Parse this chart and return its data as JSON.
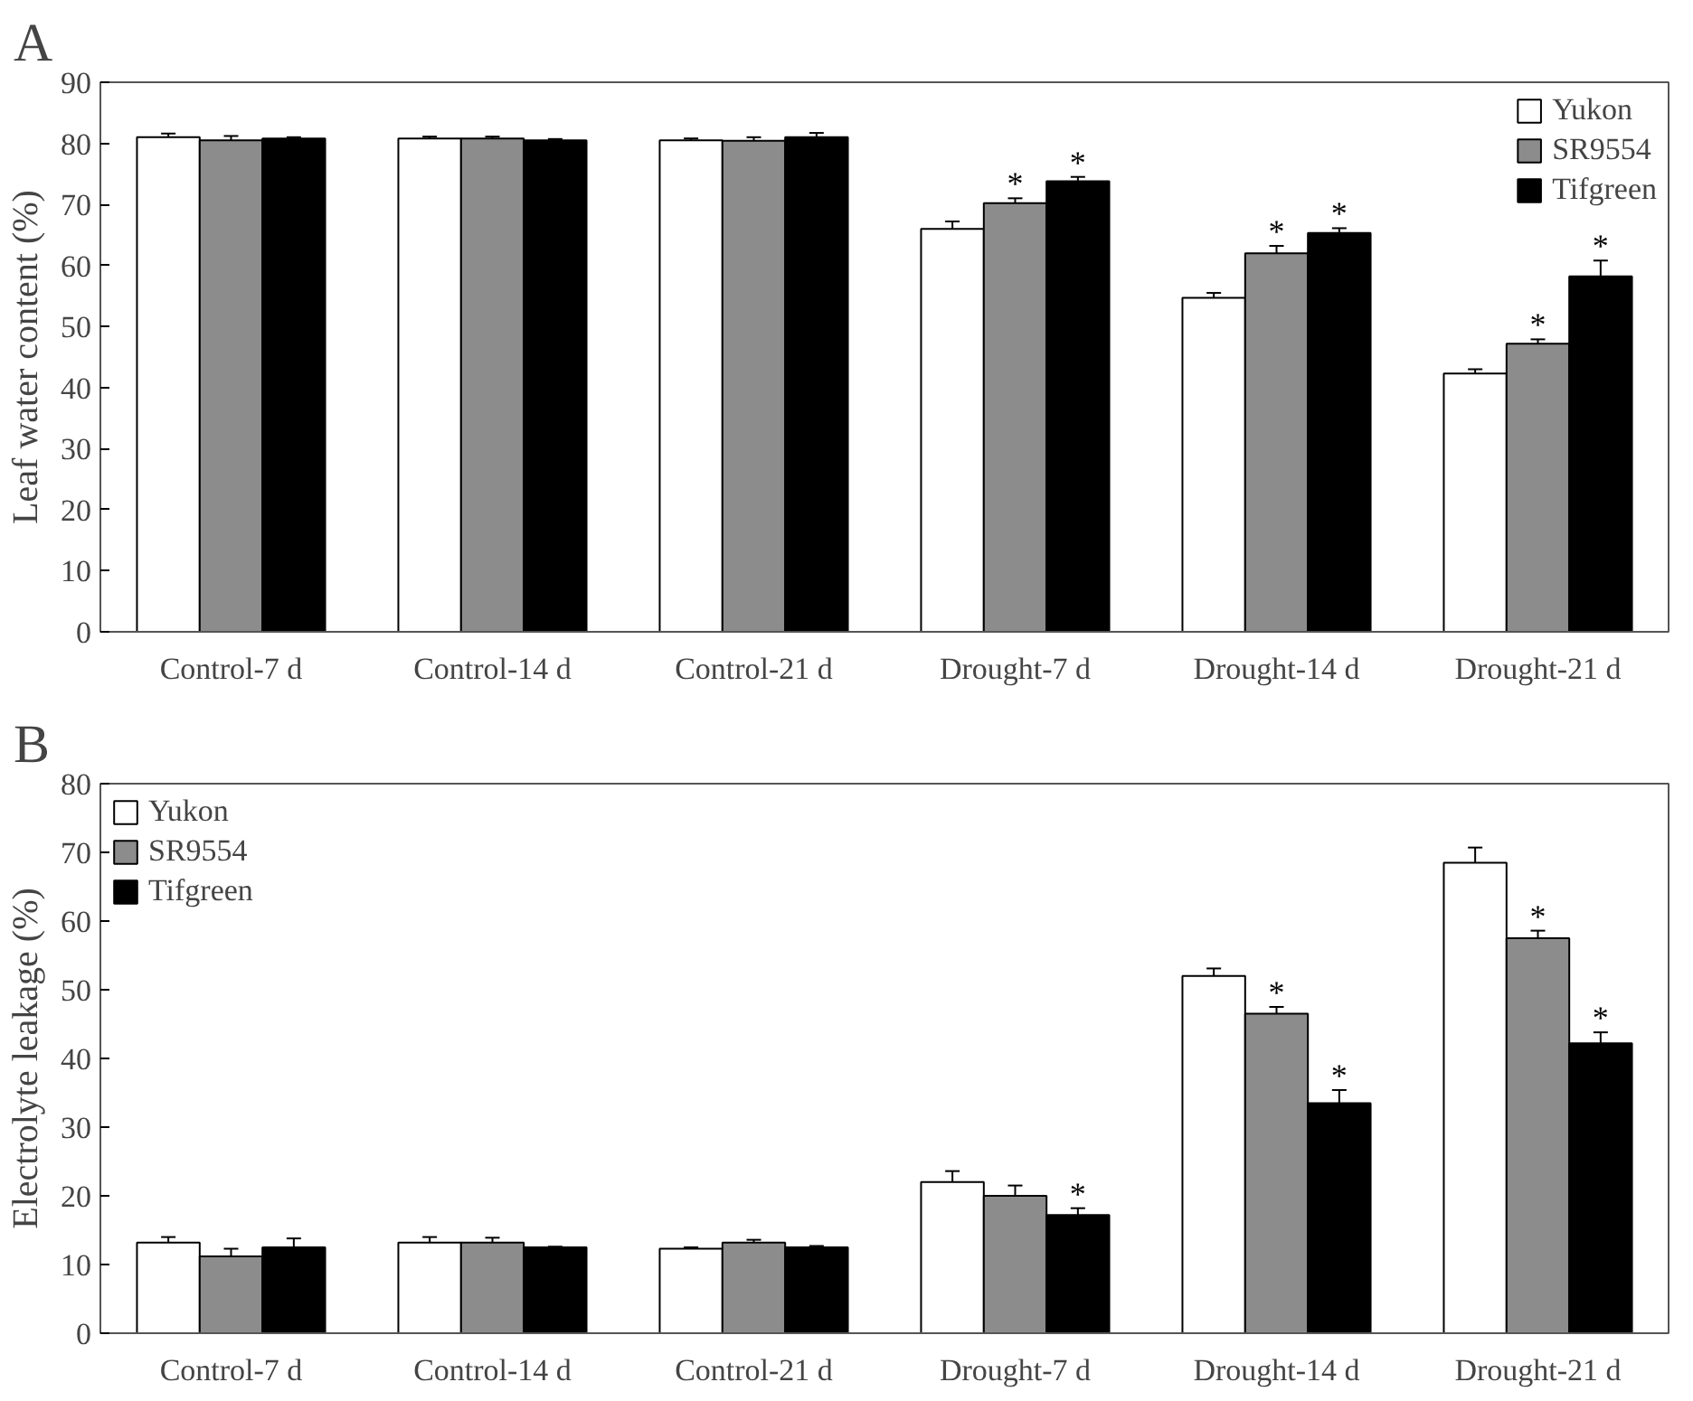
{
  "chart_data": [
    {
      "type": "bar",
      "title": "A",
      "ylabel": "Leaf water content (%)",
      "categories": [
        "Control-7 d",
        "Control-14 d",
        "Control-21 d",
        "Drought-7 d",
        "Drought-14 d",
        "Drought-21 d"
      ],
      "ylim": [
        0,
        90
      ],
      "yticks": [
        0,
        10,
        20,
        30,
        40,
        50,
        60,
        70,
        80,
        90
      ],
      "grid": false,
      "legend": "top right",
      "series": [
        {
          "name": "Yukon",
          "color": "#ffffff",
          "values": [
            81,
            80.8,
            80.5,
            66,
            54.7,
            42.3
          ],
          "errors": [
            0.6,
            0.3,
            0.3,
            1.2,
            0.8,
            0.7
          ],
          "value_labels": [
            null,
            null,
            null,
            null,
            null,
            null
          ]
        },
        {
          "name": "SR9554",
          "color": "#8c8c8c",
          "values": [
            80.5,
            80.8,
            80.4,
            70.2,
            62,
            47.2
          ],
          "errors": [
            0.7,
            0.3,
            0.6,
            0.8,
            1.2,
            0.7
          ],
          "value_labels": [
            null,
            null,
            null,
            "*",
            "*",
            "*"
          ]
        },
        {
          "name": "Tifgreen",
          "color": "#000000",
          "values": [
            80.8,
            80.5,
            81,
            73.8,
            65.3,
            58.2
          ],
          "errors": [
            0.2,
            0.2,
            0.7,
            0.7,
            0.8,
            2.6
          ],
          "value_labels": [
            null,
            null,
            null,
            "*",
            "*",
            "*"
          ]
        }
      ]
    },
    {
      "type": "bar",
      "title": "B",
      "ylabel": "Electrolyte leakage (%)",
      "categories": [
        "Control-7 d",
        "Control-14 d",
        "Control-21 d",
        "Drought-7 d",
        "Drought-14 d",
        "Drought-21 d"
      ],
      "ylim": [
        0,
        80
      ],
      "yticks": [
        0,
        10,
        20,
        30,
        40,
        50,
        60,
        70,
        80
      ],
      "grid": false,
      "legend": "top left",
      "series": [
        {
          "name": "Yukon",
          "color": "#ffffff",
          "values": [
            13.2,
            13.2,
            12.3,
            22,
            52,
            68.5
          ],
          "errors": [
            0.8,
            0.8,
            0.2,
            1.6,
            1.1,
            2.2
          ],
          "value_labels": [
            null,
            null,
            null,
            null,
            null,
            null
          ]
        },
        {
          "name": "SR9554",
          "color": "#8c8c8c",
          "values": [
            11.2,
            13.2,
            13.2,
            20,
            46.5,
            57.5
          ],
          "errors": [
            1.1,
            0.7,
            0.4,
            1.5,
            1,
            1.1
          ],
          "value_labels": [
            null,
            null,
            null,
            null,
            "*",
            "*"
          ]
        },
        {
          "name": "Tifgreen",
          "color": "#000000",
          "values": [
            12.5,
            12.5,
            12.5,
            17.2,
            33.5,
            42.2
          ],
          "errors": [
            1.3,
            0.1,
            0.2,
            1,
            1.9,
            1.6
          ],
          "value_labels": [
            null,
            null,
            null,
            "*",
            "*",
            "*"
          ]
        }
      ]
    }
  ]
}
